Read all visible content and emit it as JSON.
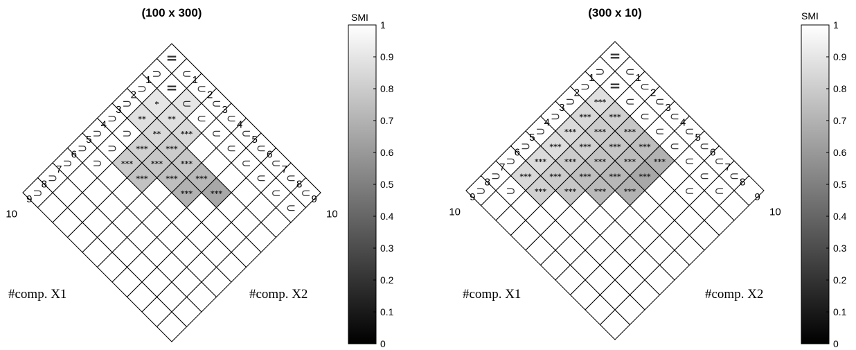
{
  "chart_data": [
    {
      "type": "heatmap",
      "title": "(100 x 300)",
      "xlabel": "#comp. X1",
      "ylabel": "#comp. X2",
      "colorbar": {
        "label": "SMI",
        "min": 0,
        "max": 1,
        "ticks": [
          "0",
          "0.1",
          "0.2",
          "0.3",
          "0.4",
          "0.5",
          "0.6",
          "0.7",
          "0.8",
          "0.9",
          "1"
        ],
        "colormap": "gray"
      },
      "axis_ticks": [
        "1",
        "2",
        "3",
        "4",
        "5",
        "6",
        "7",
        "8",
        "9",
        "10"
      ],
      "cells": [
        {
          "i": 1,
          "j": 1,
          "smi": 1.0,
          "symbol": "="
        },
        {
          "i": 2,
          "j": 1,
          "smi": 1.0,
          "symbol": "⊃"
        },
        {
          "i": 1,
          "j": 2,
          "smi": 1.0,
          "symbol": "⊂"
        },
        {
          "i": 2,
          "j": 2,
          "smi": 1.0,
          "symbol": "="
        },
        {
          "i": 3,
          "j": 1,
          "smi": 1.0,
          "symbol": "⊃"
        },
        {
          "i": 3,
          "j": 2,
          "smi": 0.9,
          "symbol": "*"
        },
        {
          "i": 2,
          "j": 3,
          "smi": 0.9,
          "symbol": "⊂"
        },
        {
          "i": 1,
          "j": 3,
          "smi": 1.0,
          "symbol": "⊂"
        },
        {
          "i": 4,
          "j": 1,
          "smi": 1.0,
          "symbol": "⊃"
        },
        {
          "i": 4,
          "j": 2,
          "smi": 0.88,
          "symbol": "**"
        },
        {
          "i": 3,
          "j": 3,
          "smi": 0.88,
          "symbol": "**"
        },
        {
          "i": 2,
          "j": 4,
          "smi": 1.0,
          "symbol": "⊂"
        },
        {
          "i": 1,
          "j": 4,
          "smi": 1.0,
          "symbol": "⊂"
        },
        {
          "i": 5,
          "j": 1,
          "smi": 1.0,
          "symbol": "⊃"
        },
        {
          "i": 4,
          "j": 3,
          "smi": 0.85,
          "symbol": "**"
        },
        {
          "i": 3,
          "j": 4,
          "smi": 0.85,
          "symbol": "***"
        },
        {
          "i": 2,
          "j": 5,
          "smi": 1.0,
          "symbol": "⊂"
        },
        {
          "i": 1,
          "j": 5,
          "smi": 1.0,
          "symbol": "⊂"
        },
        {
          "i": 6,
          "j": 1,
          "smi": 1.0,
          "symbol": "⊃"
        },
        {
          "i": 5,
          "j": 2,
          "smi": 1.0,
          "symbol": "⊃"
        },
        {
          "i": 4,
          "j": 4,
          "smi": 0.8,
          "symbol": "***"
        },
        {
          "i": 2,
          "j": 6,
          "smi": 1.0,
          "symbol": "⊂"
        },
        {
          "i": 1,
          "j": 6,
          "smi": 1.0,
          "symbol": "⊂"
        },
        {
          "i": 7,
          "j": 1,
          "smi": 1.0,
          "symbol": "⊃"
        },
        {
          "i": 5,
          "j": 3,
          "smi": 0.82,
          "symbol": "***"
        },
        {
          "i": 4,
          "j": 5,
          "smi": 0.78,
          "symbol": "***"
        },
        {
          "i": 2,
          "j": 7,
          "smi": 1.0,
          "symbol": "⊂"
        },
        {
          "i": 1,
          "j": 7,
          "smi": 1.0,
          "symbol": "⊂"
        },
        {
          "i": 8,
          "j": 1,
          "smi": 1.0,
          "symbol": "⊃"
        },
        {
          "i": 6,
          "j": 2,
          "smi": 1.0,
          "symbol": "⊃"
        },
        {
          "i": 5,
          "j": 4,
          "smi": 0.78,
          "symbol": "***"
        },
        {
          "i": 4,
          "j": 6,
          "smi": 0.72,
          "symbol": "***"
        },
        {
          "i": 2,
          "j": 8,
          "smi": 1.0,
          "symbol": "⊂"
        },
        {
          "i": 1,
          "j": 8,
          "smi": 1.0,
          "symbol": "⊂"
        },
        {
          "i": 9,
          "j": 1,
          "smi": 1.0,
          "symbol": "⊃"
        },
        {
          "i": 6,
          "j": 3,
          "smi": 0.8,
          "symbol": "***"
        },
        {
          "i": 5,
          "j": 5,
          "smi": 0.75,
          "symbol": "***"
        },
        {
          "i": 4,
          "j": 7,
          "smi": 0.66,
          "symbol": "***"
        },
        {
          "i": 2,
          "j": 9,
          "smi": 1.0,
          "symbol": "⊂"
        },
        {
          "i": 1,
          "j": 9,
          "smi": 1.0,
          "symbol": "⊂"
        },
        {
          "i": 10,
          "j": 1,
          "smi": 1.0,
          "symbol": "⊃"
        },
        {
          "i": 7,
          "j": 2,
          "smi": 1.0,
          "symbol": "⊃"
        },
        {
          "i": 6,
          "j": 4,
          "smi": 0.76,
          "symbol": "***"
        },
        {
          "i": 5,
          "j": 6,
          "smi": 0.7,
          "symbol": "***"
        },
        {
          "i": 2,
          "j": 10,
          "smi": 1.0,
          "symbol": "⊂"
        },
        {
          "i": 1,
          "j": 10,
          "smi": 1.0,
          "symbol": "⊂"
        }
      ]
    },
    {
      "type": "heatmap",
      "title": "(300 x 10)",
      "xlabel": "#comp. X1",
      "ylabel": "#comp. X2",
      "colorbar": {
        "label": "SMI",
        "min": 0,
        "max": 1,
        "ticks": [
          "0",
          "0.1",
          "0.2",
          "0.3",
          "0.4",
          "0.5",
          "0.6",
          "0.7",
          "0.8",
          "0.9",
          "1"
        ],
        "colormap": "gray"
      },
      "axis_ticks": [
        "1",
        "2",
        "3",
        "4",
        "5",
        "6",
        "7",
        "8",
        "9",
        "10"
      ],
      "cells": [
        {
          "i": 1,
          "j": 1,
          "smi": 1.0,
          "symbol": "="
        },
        {
          "i": 2,
          "j": 1,
          "smi": 1.0,
          "symbol": "⊃"
        },
        {
          "i": 1,
          "j": 2,
          "smi": 1.0,
          "symbol": "⊂"
        },
        {
          "i": 3,
          "j": 1,
          "smi": 1.0,
          "symbol": "⊃"
        },
        {
          "i": 2,
          "j": 2,
          "smi": 1.0,
          "symbol": "="
        },
        {
          "i": 1,
          "j": 3,
          "smi": 1.0,
          "symbol": "⊂"
        },
        {
          "i": 4,
          "j": 1,
          "smi": 1.0,
          "symbol": "⊃"
        },
        {
          "i": 3,
          "j": 2,
          "smi": 0.88,
          "symbol": "***"
        },
        {
          "i": 2,
          "j": 3,
          "smi": 1.0,
          "symbol": "⊂"
        },
        {
          "i": 1,
          "j": 4,
          "smi": 1.0,
          "symbol": "⊂"
        },
        {
          "i": 5,
          "j": 1,
          "smi": 1.0,
          "symbol": "⊃"
        },
        {
          "i": 4,
          "j": 2,
          "smi": 0.85,
          "symbol": "***"
        },
        {
          "i": 3,
          "j": 3,
          "smi": 0.82,
          "symbol": "***"
        },
        {
          "i": 2,
          "j": 4,
          "smi": 1.0,
          "symbol": "⊂"
        },
        {
          "i": 1,
          "j": 5,
          "smi": 1.0,
          "symbol": "⊂"
        },
        {
          "i": 6,
          "j": 1,
          "smi": 1.0,
          "symbol": "⊃"
        },
        {
          "i": 5,
          "j": 2,
          "smi": 0.86,
          "symbol": "***"
        },
        {
          "i": 4,
          "j": 3,
          "smi": 0.8,
          "symbol": "***"
        },
        {
          "i": 3,
          "j": 4,
          "smi": 0.78,
          "symbol": "***"
        },
        {
          "i": 2,
          "j": 5,
          "smi": 1.0,
          "symbol": "⊂"
        },
        {
          "i": 1,
          "j": 6,
          "smi": 1.0,
          "symbol": "⊂"
        },
        {
          "i": 7,
          "j": 1,
          "smi": 1.0,
          "symbol": "⊃"
        },
        {
          "i": 6,
          "j": 2,
          "smi": 0.87,
          "symbol": "***"
        },
        {
          "i": 5,
          "j": 3,
          "smi": 0.82,
          "symbol": "***"
        },
        {
          "i": 4,
          "j": 4,
          "smi": 0.78,
          "symbol": "***"
        },
        {
          "i": 3,
          "j": 5,
          "smi": 0.75,
          "symbol": "***"
        },
        {
          "i": 2,
          "j": 6,
          "smi": 1.0,
          "symbol": "⊂"
        },
        {
          "i": 1,
          "j": 7,
          "smi": 1.0,
          "symbol": "⊂"
        },
        {
          "i": 8,
          "j": 1,
          "smi": 1.0,
          "symbol": "⊃"
        },
        {
          "i": 7,
          "j": 2,
          "smi": 0.86,
          "symbol": "***"
        },
        {
          "i": 6,
          "j": 3,
          "smi": 0.8,
          "symbol": "***"
        },
        {
          "i": 5,
          "j": 4,
          "smi": 0.76,
          "symbol": "***"
        },
        {
          "i": 4,
          "j": 5,
          "smi": 0.74,
          "symbol": "***"
        },
        {
          "i": 3,
          "j": 6,
          "smi": 0.7,
          "symbol": "***"
        },
        {
          "i": 2,
          "j": 7,
          "smi": 1.0,
          "symbol": "⊂"
        },
        {
          "i": 1,
          "j": 8,
          "smi": 1.0,
          "symbol": "⊂"
        },
        {
          "i": 9,
          "j": 1,
          "smi": 1.0,
          "symbol": "⊃"
        },
        {
          "i": 8,
          "j": 2,
          "smi": 0.85,
          "symbol": "***"
        },
        {
          "i": 7,
          "j": 3,
          "smi": 0.8,
          "symbol": "***"
        },
        {
          "i": 6,
          "j": 4,
          "smi": 0.75,
          "symbol": "***"
        },
        {
          "i": 5,
          "j": 5,
          "smi": 0.72,
          "symbol": "***"
        },
        {
          "i": 4,
          "j": 6,
          "smi": 0.66,
          "symbol": "***"
        },
        {
          "i": 2,
          "j": 8,
          "smi": 1.0,
          "symbol": "⊂"
        },
        {
          "i": 1,
          "j": 9,
          "smi": 1.0,
          "symbol": "⊂"
        },
        {
          "i": 10,
          "j": 1,
          "smi": 1.0,
          "symbol": "⊃"
        },
        {
          "i": 9,
          "j": 2,
          "smi": 1.0,
          "symbol": "⊃"
        },
        {
          "i": 8,
          "j": 3,
          "smi": 0.82,
          "symbol": "***"
        },
        {
          "i": 7,
          "j": 4,
          "smi": 0.78,
          "symbol": "***"
        },
        {
          "i": 6,
          "j": 5,
          "smi": 0.73,
          "symbol": "***"
        },
        {
          "i": 5,
          "j": 6,
          "smi": 0.7,
          "symbol": "***"
        },
        {
          "i": 3,
          "j": 8,
          "smi": 1.0,
          "symbol": "⊂"
        },
        {
          "i": 2,
          "j": 9,
          "smi": 1.0,
          "symbol": "⊂"
        }
      ]
    }
  ]
}
